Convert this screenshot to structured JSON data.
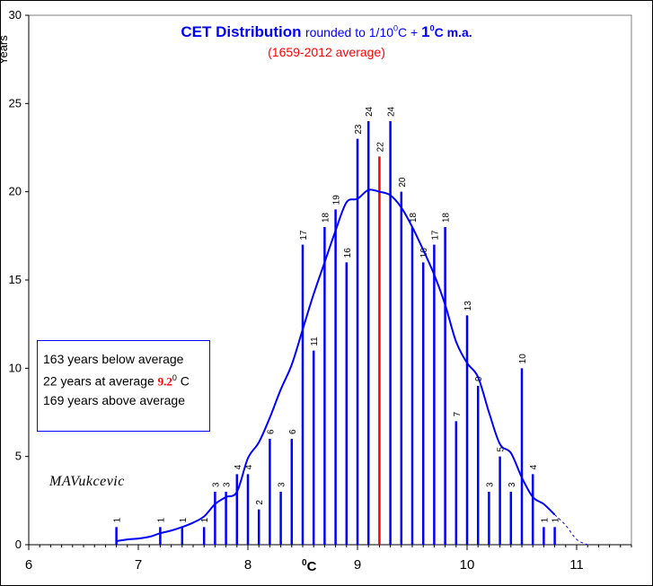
{
  "title": {
    "main": "CET  Distribution",
    "rounded": "rounded to 1/10",
    "deg_sup": "0",
    "c": "C + ",
    "one": "1",
    "ma_sup": "0",
    "ma": "C m.a.",
    "paren_open": "(",
    "period": "1659-2012 average",
    "paren_close": ")"
  },
  "ylabel": "Years",
  "xunit": {
    "sup": "0",
    "unit": "C"
  },
  "legend": {
    "line1": "163 years below average",
    "line2_prefix": "22 years at average ",
    "line2_value": "9.2",
    "line2_sup": "0",
    "line2_suffix": " C",
    "line3": "169 years above average"
  },
  "author": "MAVukcevic",
  "colors": {
    "bars": "#0000ff",
    "average_bar": "#ff0000",
    "curve": "#0000ff"
  },
  "chart_data": {
    "type": "bar",
    "xlabel": "0C",
    "ylabel": "Years",
    "xlim": [
      6,
      11.5
    ],
    "ylim": [
      0,
      30
    ],
    "x_ticks": [
      6,
      7,
      8,
      9,
      10,
      11
    ],
    "y_ticks": [
      0,
      5,
      10,
      15,
      20,
      25,
      30
    ],
    "grid": false,
    "bars": [
      {
        "x": 6.8,
        "y": 1
      },
      {
        "x": 7.2,
        "y": 1
      },
      {
        "x": 7.4,
        "y": 1
      },
      {
        "x": 7.6,
        "y": 1
      },
      {
        "x": 7.7,
        "y": 3
      },
      {
        "x": 7.8,
        "y": 3
      },
      {
        "x": 7.9,
        "y": 4
      },
      {
        "x": 8.0,
        "y": 4
      },
      {
        "x": 8.1,
        "y": 2
      },
      {
        "x": 8.2,
        "y": 6
      },
      {
        "x": 8.3,
        "y": 3
      },
      {
        "x": 8.4,
        "y": 6
      },
      {
        "x": 8.5,
        "y": 17
      },
      {
        "x": 8.6,
        "y": 11
      },
      {
        "x": 8.7,
        "y": 18
      },
      {
        "x": 8.8,
        "y": 19
      },
      {
        "x": 8.9,
        "y": 16
      },
      {
        "x": 9.0,
        "y": 23
      },
      {
        "x": 9.1,
        "y": 24
      },
      {
        "x": 9.2,
        "y": 22,
        "average": true
      },
      {
        "x": 9.3,
        "y": 24
      },
      {
        "x": 9.4,
        "y": 20
      },
      {
        "x": 9.5,
        "y": 18
      },
      {
        "x": 9.6,
        "y": 16
      },
      {
        "x": 9.7,
        "y": 17
      },
      {
        "x": 9.8,
        "y": 18
      },
      {
        "x": 9.9,
        "y": 7
      },
      {
        "x": 10.0,
        "y": 13
      },
      {
        "x": 10.1,
        "y": 9
      },
      {
        "x": 10.2,
        "y": 3
      },
      {
        "x": 10.3,
        "y": 5
      },
      {
        "x": 10.4,
        "y": 3
      },
      {
        "x": 10.5,
        "y": 10
      },
      {
        "x": 10.6,
        "y": 4
      },
      {
        "x": 10.7,
        "y": 1
      },
      {
        "x": 10.8,
        "y": 1
      }
    ],
    "moving_average": [
      {
        "x": 6.8,
        "y": 0.2
      },
      {
        "x": 6.9,
        "y": 0.3
      },
      {
        "x": 7.0,
        "y": 0.35
      },
      {
        "x": 7.1,
        "y": 0.45
      },
      {
        "x": 7.2,
        "y": 0.65
      },
      {
        "x": 7.3,
        "y": 0.8
      },
      {
        "x": 7.4,
        "y": 1.0
      },
      {
        "x": 7.5,
        "y": 1.25
      },
      {
        "x": 7.6,
        "y": 1.6
      },
      {
        "x": 7.7,
        "y": 2.3
      },
      {
        "x": 7.8,
        "y": 2.7
      },
      {
        "x": 7.9,
        "y": 3.0
      },
      {
        "x": 8.0,
        "y": 4.9
      },
      {
        "x": 8.1,
        "y": 5.8
      },
      {
        "x": 8.2,
        "y": 7.2
      },
      {
        "x": 8.3,
        "y": 8.8
      },
      {
        "x": 8.4,
        "y": 10.2
      },
      {
        "x": 8.5,
        "y": 12.2
      },
      {
        "x": 8.6,
        "y": 14.2
      },
      {
        "x": 8.7,
        "y": 16.0
      },
      {
        "x": 8.8,
        "y": 17.8
      },
      {
        "x": 8.9,
        "y": 19.4
      },
      {
        "x": 9.0,
        "y": 19.6
      },
      {
        "x": 9.1,
        "y": 20.1
      },
      {
        "x": 9.2,
        "y": 20.0
      },
      {
        "x": 9.3,
        "y": 19.8
      },
      {
        "x": 9.4,
        "y": 19.1
      },
      {
        "x": 9.5,
        "y": 18.0
      },
      {
        "x": 9.6,
        "y": 16.7
      },
      {
        "x": 9.7,
        "y": 15.3
      },
      {
        "x": 9.8,
        "y": 13.6
      },
      {
        "x": 9.9,
        "y": 11.5
      },
      {
        "x": 10.0,
        "y": 10.3
      },
      {
        "x": 10.1,
        "y": 9.5
      },
      {
        "x": 10.2,
        "y": 7.5
      },
      {
        "x": 10.3,
        "y": 5.7
      },
      {
        "x": 10.4,
        "y": 5.2
      },
      {
        "x": 10.5,
        "y": 3.8
      },
      {
        "x": 10.6,
        "y": 2.7
      },
      {
        "x": 10.7,
        "y": 2.3
      },
      {
        "x": 10.8,
        "y": 1.7
      }
    ],
    "moving_average_extension": [
      {
        "x": 10.8,
        "y": 1.7
      },
      {
        "x": 10.9,
        "y": 1.1
      },
      {
        "x": 11.0,
        "y": 0.3
      },
      {
        "x": 11.1,
        "y": 0.0
      }
    ]
  }
}
